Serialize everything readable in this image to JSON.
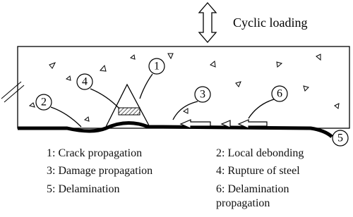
{
  "diagram": {
    "load_label": "Cyclic loading",
    "markers": [
      {
        "label": "1"
      },
      {
        "label": "2"
      },
      {
        "label": "3"
      },
      {
        "label": "4"
      },
      {
        "label": "5"
      },
      {
        "label": "6"
      }
    ],
    "legend": [
      "1: Crack propagation",
      "2: Local debonding",
      "3: Damage propagation",
      "4: Rupture of steel",
      "5: Delamination",
      "6: Delamination propagation"
    ]
  }
}
